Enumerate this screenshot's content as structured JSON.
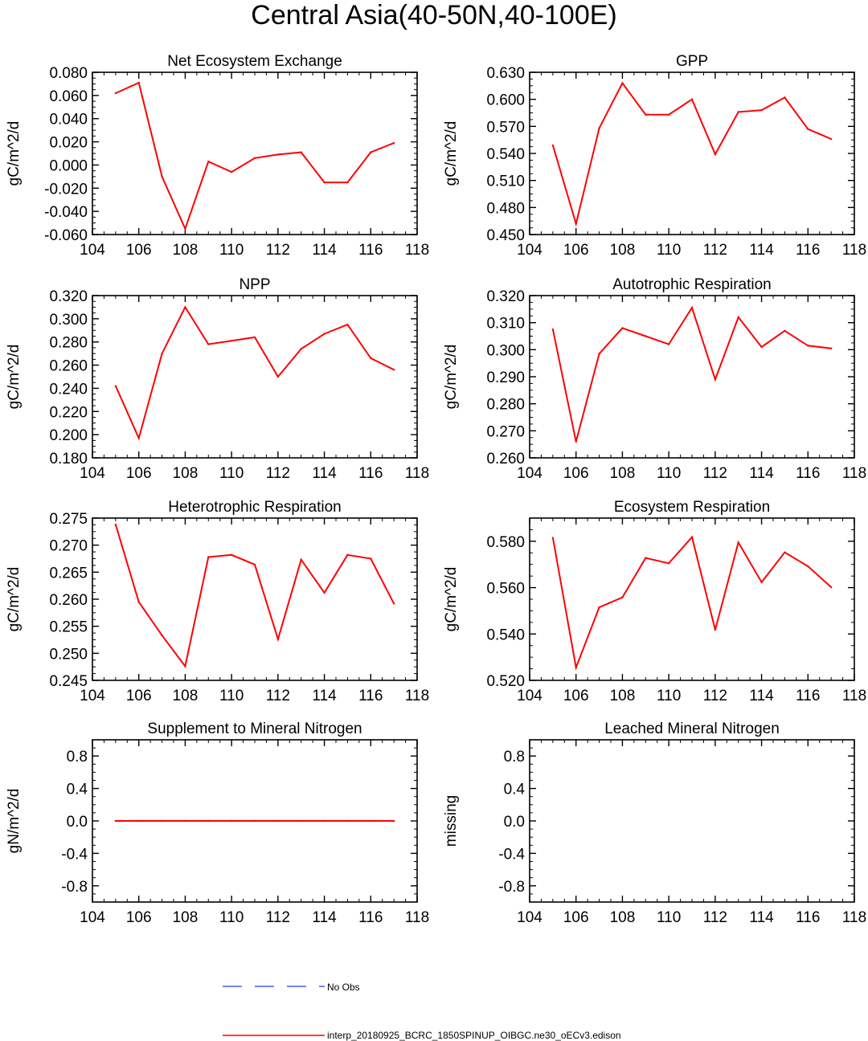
{
  "title": "Central Asia(40-50N,40-100E)",
  "colors": {
    "model_line": "#ff0000",
    "obs_line": "#4a5cf0",
    "axis": "#000000"
  },
  "legend": [
    {
      "label": "No Obs",
      "style": "dashed",
      "color": "#4a5cf0"
    },
    {
      "label": "interp_20180925_BCRC_1850SPINUP_OIBGC.ne30_oECv3.edison",
      "style": "solid",
      "color": "#ff0000"
    }
  ],
  "chart_data": [
    {
      "type": "line",
      "title": "Net Ecosystem Exchange",
      "ylabel": "gC/m^2/d",
      "xlim": [
        104,
        118
      ],
      "xticks": [
        "104",
        "106",
        "108",
        "110",
        "112",
        "114",
        "116",
        "118"
      ],
      "ylim": [
        -0.06,
        0.08
      ],
      "yticks": [
        "-0.060",
        "-0.040",
        "-0.020",
        "0.000",
        "0.020",
        "0.040",
        "0.060",
        "0.080"
      ],
      "x": [
        105,
        106,
        107,
        108,
        109,
        110,
        111,
        112,
        113,
        114,
        115,
        116,
        117
      ],
      "values": [
        0.062,
        0.071,
        -0.01,
        -0.055,
        0.003,
        -0.006,
        0.006,
        0.009,
        0.011,
        -0.015,
        -0.015,
        0.011,
        0.019
      ]
    },
    {
      "type": "line",
      "title": "GPP",
      "ylabel": "gC/m^2/d",
      "xlim": [
        104,
        118
      ],
      "xticks": [
        "104",
        "106",
        "108",
        "110",
        "112",
        "114",
        "116",
        "118"
      ],
      "ylim": [
        0.45,
        0.63
      ],
      "yticks": [
        "0.450",
        "0.480",
        "0.510",
        "0.540",
        "0.570",
        "0.600",
        "0.630"
      ],
      "x": [
        105,
        106,
        107,
        108,
        109,
        110,
        111,
        112,
        113,
        114,
        115,
        116,
        117
      ],
      "values": [
        0.549,
        0.462,
        0.568,
        0.618,
        0.583,
        0.583,
        0.6,
        0.539,
        0.586,
        0.588,
        0.602,
        0.567,
        0.556
      ]
    },
    {
      "type": "line",
      "title": "NPP",
      "ylabel": "gC/m^2/d",
      "xlim": [
        104,
        118
      ],
      "xticks": [
        "104",
        "106",
        "108",
        "110",
        "112",
        "114",
        "116",
        "118"
      ],
      "ylim": [
        0.18,
        0.32
      ],
      "yticks": [
        "0.180",
        "0.200",
        "0.220",
        "0.240",
        "0.260",
        "0.280",
        "0.300",
        "0.320"
      ],
      "x": [
        105,
        106,
        107,
        108,
        109,
        110,
        111,
        112,
        113,
        114,
        115,
        116,
        117
      ],
      "values": [
        0.242,
        0.197,
        0.27,
        0.31,
        0.278,
        0.281,
        0.284,
        0.25,
        0.274,
        0.287,
        0.295,
        0.266,
        0.256
      ]
    },
    {
      "type": "line",
      "title": "Autotrophic Respiration",
      "ylabel": "gC/m^2/d",
      "xlim": [
        104,
        118
      ],
      "xticks": [
        "104",
        "106",
        "108",
        "110",
        "112",
        "114",
        "116",
        "118"
      ],
      "ylim": [
        0.26,
        0.32
      ],
      "yticks": [
        "0.260",
        "0.270",
        "0.280",
        "0.290",
        "0.300",
        "0.310",
        "0.320"
      ],
      "x": [
        105,
        106,
        107,
        108,
        109,
        110,
        111,
        112,
        113,
        114,
        115,
        116,
        117
      ],
      "values": [
        0.3075,
        0.266,
        0.2985,
        0.308,
        0.305,
        0.302,
        0.3155,
        0.289,
        0.312,
        0.301,
        0.307,
        0.3015,
        0.3005
      ]
    },
    {
      "type": "line",
      "title": "Heterotrophic Respiration",
      "ylabel": "gC/m^2/d",
      "xlim": [
        104,
        118
      ],
      "xticks": [
        "104",
        "106",
        "108",
        "110",
        "112",
        "114",
        "116",
        "118"
      ],
      "ylim": [
        0.245,
        0.275
      ],
      "yticks": [
        "0.245",
        "0.250",
        "0.255",
        "0.260",
        "0.265",
        "0.270",
        "0.275"
      ],
      "x": [
        105,
        106,
        107,
        108,
        109,
        110,
        111,
        112,
        113,
        114,
        115,
        116,
        117
      ],
      "values": [
        0.2738,
        0.2595,
        0.2533,
        0.2476,
        0.2678,
        0.2682,
        0.2664,
        0.2526,
        0.2673,
        0.2612,
        0.2682,
        0.2675,
        0.2592
      ]
    },
    {
      "type": "line",
      "title": "Ecosystem Respiration",
      "ylabel": "gC/m^2/d",
      "xlim": [
        104,
        118
      ],
      "xticks": [
        "104",
        "106",
        "108",
        "110",
        "112",
        "114",
        "116",
        "118"
      ],
      "ylim": [
        0.52,
        0.59
      ],
      "yticks": [
        "0.520",
        "0.540",
        "0.560",
        "0.580"
      ],
      "x": [
        105,
        106,
        107,
        108,
        109,
        110,
        111,
        112,
        113,
        114,
        115,
        116,
        117
      ],
      "values": [
        0.5815,
        0.5255,
        0.5515,
        0.5558,
        0.5728,
        0.5705,
        0.5818,
        0.5418,
        0.5795,
        0.5623,
        0.5752,
        0.5692,
        0.5602
      ]
    },
    {
      "type": "line",
      "title": "Supplement to Mineral Nitrogen",
      "ylabel": "gN/m^2/d",
      "xlim": [
        104,
        118
      ],
      "xticks": [
        "104",
        "106",
        "108",
        "110",
        "112",
        "114",
        "116",
        "118"
      ],
      "ylim": [
        -1.0,
        1.0
      ],
      "yticks": [
        "-0.8",
        "-0.4",
        "0.0",
        "0.4",
        "0.8"
      ],
      "ytick_values": [
        -0.8,
        -0.4,
        0.0,
        0.4,
        0.8
      ],
      "x": [
        105,
        106,
        107,
        108,
        109,
        110,
        111,
        112,
        113,
        114,
        115,
        116,
        117
      ],
      "values": [
        0,
        0,
        0,
        0,
        0,
        0,
        0,
        0,
        0,
        0,
        0,
        0,
        0
      ]
    },
    {
      "type": "line",
      "title": "Leached Mineral Nitrogen",
      "ylabel": "missing",
      "xlim": [
        104,
        118
      ],
      "xticks": [
        "104",
        "106",
        "108",
        "110",
        "112",
        "114",
        "116",
        "118"
      ],
      "ylim": [
        -1.0,
        1.0
      ],
      "yticks": [
        "-0.8",
        "-0.4",
        "0.0",
        "0.4",
        "0.8"
      ],
      "ytick_values": [
        -0.8,
        -0.4,
        0.0,
        0.4,
        0.8
      ],
      "x": [],
      "values": []
    }
  ]
}
